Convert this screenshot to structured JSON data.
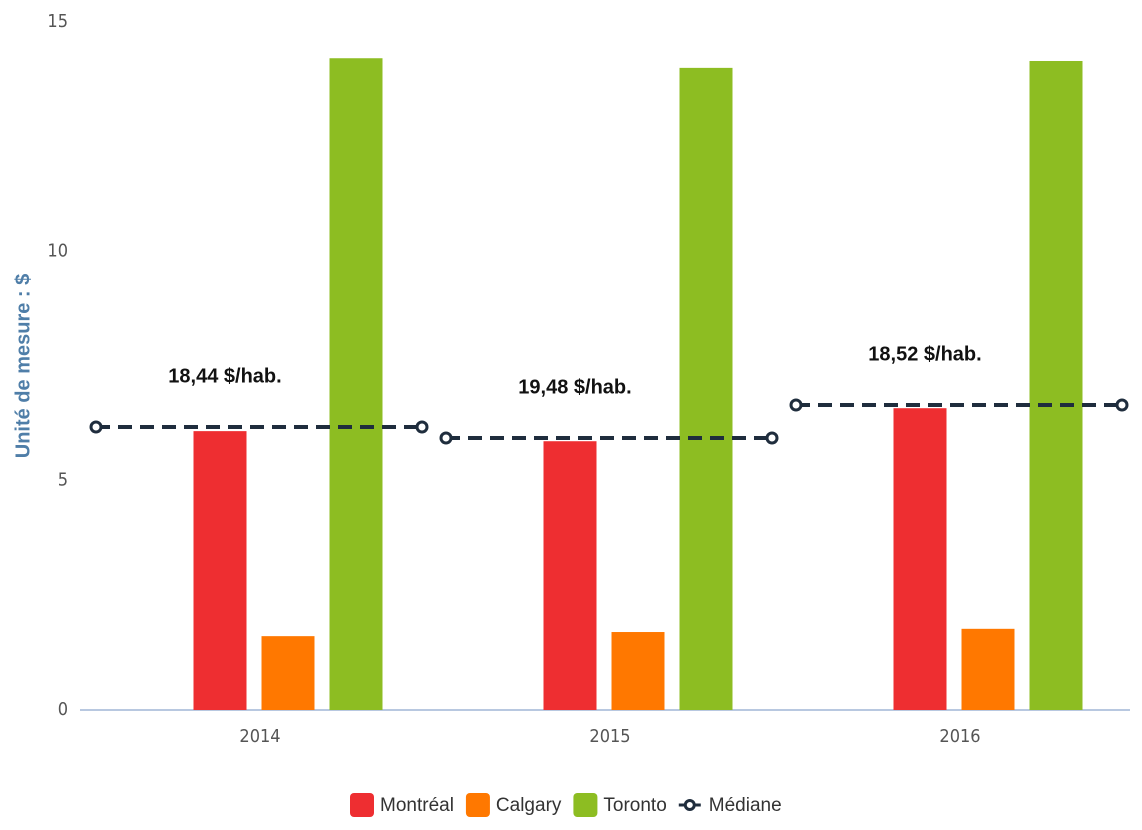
{
  "chart_data": {
    "type": "bar",
    "y_label": "Unité de mesure : $",
    "categories": [
      "2014",
      "2015",
      "2016"
    ],
    "series": [
      {
        "name": "Montréal",
        "color": "#ee2e31",
        "values": [
          6.08,
          5.86,
          6.58
        ]
      },
      {
        "name": "Calgary",
        "color": "#ff7800",
        "values": [
          1.61,
          1.7,
          1.77
        ]
      },
      {
        "name": "Toronto",
        "color": "#8dbd22",
        "values": [
          14.21,
          14.0,
          14.15
        ]
      },
      {
        "name": "Médiane",
        "color": "#1f2d3d",
        "type": "line",
        "values": [
          6.17,
          5.93,
          6.65
        ]
      }
    ],
    "annotations": [
      "18,44 $/hab.",
      "19,48 $/hab.",
      "18,52 $/hab."
    ],
    "ylim": [
      0,
      15
    ],
    "yticks": [
      0,
      5,
      10,
      15
    ],
    "grid": false,
    "legend": "bottom"
  }
}
